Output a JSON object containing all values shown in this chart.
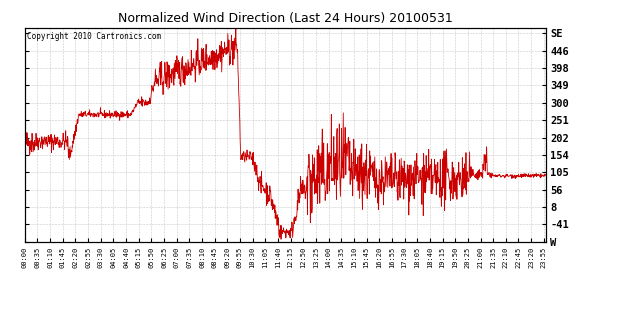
{
  "title": "Normalized Wind Direction (Last 24 Hours) 20100531",
  "copyright_text": "Copyright 2010 Cartronics.com",
  "line_color": "#cc0000",
  "bg_color": "#ffffff",
  "plot_bg_color": "#ffffff",
  "grid_color": "#bbbbbb",
  "ytick_labels": [
    "W",
    "-41",
    "8",
    "56",
    "105",
    "154",
    "202",
    "251",
    "300",
    "349",
    "398",
    "446",
    "SE"
  ],
  "ytick_values": [
    -90,
    -41,
    8,
    56,
    105,
    154,
    202,
    251,
    300,
    349,
    398,
    446,
    495
  ],
  "ylim": [
    -90,
    510
  ],
  "xtick_labels": [
    "00:00",
    "00:35",
    "01:10",
    "01:45",
    "02:20",
    "02:55",
    "03:30",
    "04:05",
    "04:40",
    "05:15",
    "05:50",
    "06:25",
    "07:00",
    "07:35",
    "08:10",
    "08:45",
    "09:20",
    "09:55",
    "10:30",
    "11:05",
    "11:40",
    "12:15",
    "12:50",
    "13:25",
    "14:00",
    "14:35",
    "15:10",
    "15:45",
    "16:20",
    "16:55",
    "17:30",
    "18:05",
    "18:40",
    "19:15",
    "19:50",
    "20:25",
    "21:00",
    "21:35",
    "22:10",
    "22:45",
    "23:20",
    "23:55"
  ]
}
